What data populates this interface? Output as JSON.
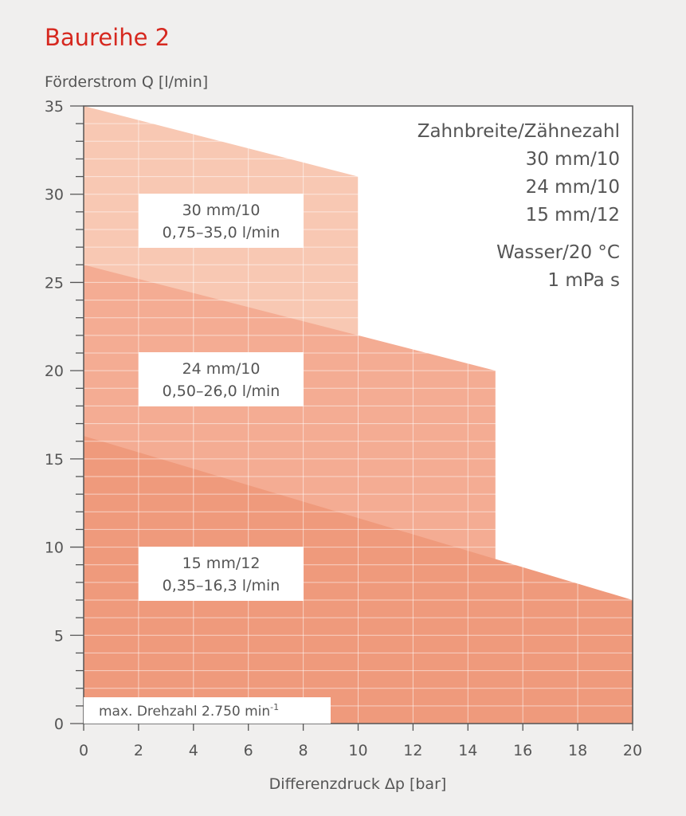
{
  "page_title": "Baureihe 2",
  "colors": {
    "title": "#d6281f",
    "area_30mm": "#f8c8b3",
    "area_24mm": "#f4ac93",
    "area_15mm": "#ef9a7c",
    "plot_background": "#ffffff",
    "page_background": "#f0efee"
  },
  "chart_data": {
    "type": "area",
    "title": "",
    "ylabel": "Förderstrom Q [l/min]",
    "xlabel": "Differenzdruck Δp [bar]",
    "xlim": [
      0,
      20
    ],
    "ylim": [
      0,
      35
    ],
    "x_ticks": [
      0,
      2,
      4,
      6,
      8,
      10,
      12,
      14,
      16,
      18,
      20
    ],
    "y_ticks": [
      0,
      5,
      10,
      15,
      20,
      25,
      30,
      35
    ],
    "grid": true,
    "series": [
      {
        "name": "30 mm/10",
        "x": [
          0,
          10
        ],
        "y": [
          35.0,
          31.0
        ],
        "color": "#f8c8b3",
        "label_lines": [
          "30 mm/10",
          "0,75–35,0 l/min"
        ]
      },
      {
        "name": "24 mm/10",
        "x": [
          0,
          15
        ],
        "y": [
          26.0,
          20.0
        ],
        "color": "#f4ac93",
        "label_lines": [
          "24 mm/10",
          "0,50–26,0 l/min"
        ]
      },
      {
        "name": "15 mm/12",
        "x": [
          0,
          20
        ],
        "y": [
          16.3,
          7.0
        ],
        "color": "#ef9a7c",
        "label_lines": [
          "15 mm/12",
          "0,35–16,3 l/min"
        ]
      }
    ],
    "legend_lines": [
      "Zahnbreite/Zähnezahl",
      "30 mm/10",
      "24 mm/10",
      "15 mm/12"
    ],
    "medium_lines": [
      "Wasser/20 °C",
      "1 mPa s"
    ],
    "footnote": {
      "text": "max. Drehzahl 2.750 min",
      "superscript": "-1"
    }
  }
}
